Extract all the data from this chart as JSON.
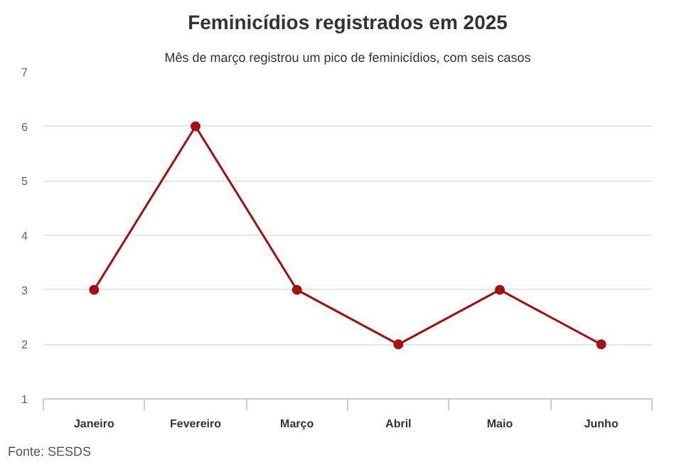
{
  "chart_data": {
    "type": "line",
    "title": "Feminicídios registrados em 2025",
    "subtitle": "Mês de março registrou um pico de feminicídios, com seis casos",
    "categories": [
      "Janeiro",
      "Fevereiro",
      "Março",
      "Abril",
      "Maio",
      "Junho"
    ],
    "series": [
      {
        "color": "#a50f0f",
        "values": [
          3,
          6,
          3,
          2,
          3,
          2
        ]
      }
    ],
    "ylim": [
      1,
      7
    ],
    "yticks": [
      1,
      2,
      3,
      4,
      5,
      6,
      7
    ],
    "grid": "y",
    "marker": "circle",
    "line_style": "solid",
    "annotations": [
      "Fonte: SESDS"
    ]
  }
}
